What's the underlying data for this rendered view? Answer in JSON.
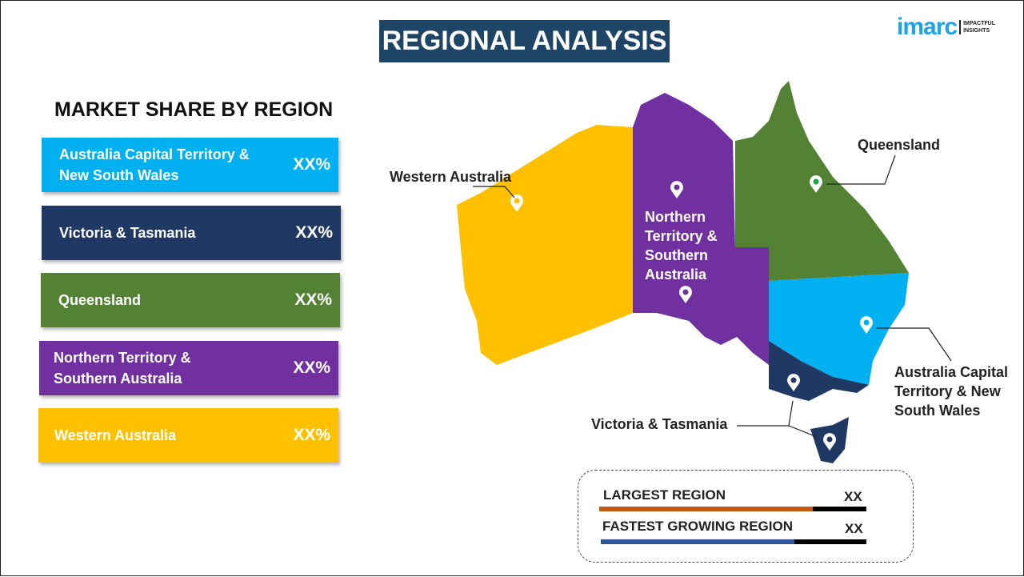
{
  "title": "REGIONAL ANALYSIS",
  "logo": {
    "brand": "imarc",
    "tagline1": "IMPACTFUL",
    "tagline2": "INSIGHTS"
  },
  "subtitle": "MARKET SHARE BY REGION",
  "regions": [
    {
      "name": "Australia Capital Territory & New South Wales",
      "value": "XX%",
      "color": "#00b0f0"
    },
    {
      "name": "Victoria & Tasmania",
      "value": "XX%",
      "color": "#1f3864"
    },
    {
      "name": "Queensland",
      "value": "XX%",
      "color": "#548235"
    },
    {
      "name": "Northern Territory & Southern Australia",
      "value": "XX%",
      "color": "#7030a0"
    },
    {
      "name": "Western Australia",
      "value": "XX%",
      "color": "#ffc000"
    }
  ],
  "map_labels": {
    "wa": "Western Australia",
    "nt": "Northern Territory & Southern Australia",
    "qld": "Queensland",
    "nsw": "Australia Capital Territory & New South Wales",
    "vic": "Victoria & Tasmania"
  },
  "key": {
    "largest": {
      "label": "LARGEST REGION",
      "value": "XX",
      "fill_pct": 80,
      "color": "#c55a11"
    },
    "fastest": {
      "label": "FASTEST GROWING REGION",
      "value": "XX",
      "fill_pct": 73,
      "color": "#2f5597"
    }
  }
}
